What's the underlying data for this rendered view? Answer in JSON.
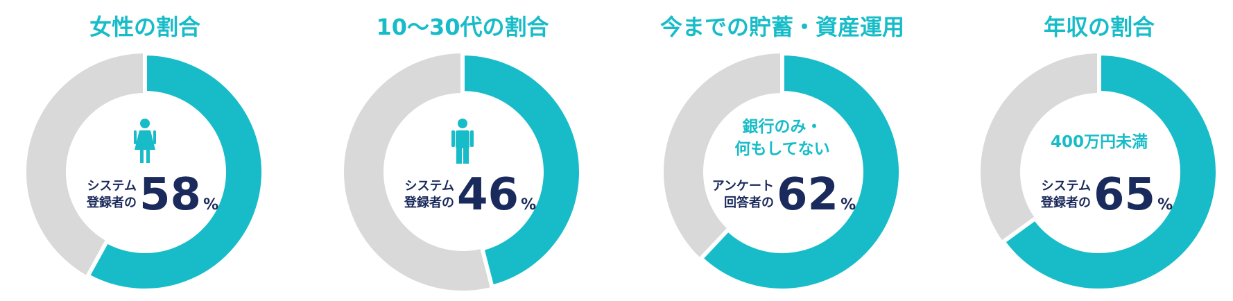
{
  "chart_data": [
    {
      "type": "donut",
      "title": "女性の割合",
      "icon": "female",
      "label": [
        "システム",
        "登録者の"
      ],
      "values": [
        58
      ],
      "unit": "%",
      "color": "#17bcc8"
    },
    {
      "type": "donut",
      "title": "10〜30代の割合",
      "icon": "male",
      "label": [
        "システム",
        "登録者の"
      ],
      "values": [
        46
      ],
      "unit": "%",
      "color": "#17bcc8"
    },
    {
      "type": "donut",
      "title": "今までの貯蓄・資産運用",
      "subtitle": [
        "銀行のみ・",
        "何もしてない"
      ],
      "label": [
        "アンケート",
        "回答者の"
      ],
      "values": [
        62
      ],
      "unit": "%",
      "color": "#17bcc8"
    },
    {
      "type": "donut",
      "title": "年収の割合",
      "subtitle": [
        "400万円未満"
      ],
      "label": [
        "システム",
        "登録者の"
      ],
      "values": [
        65
      ],
      "unit": "%",
      "color": "#17bcc8"
    }
  ]
}
